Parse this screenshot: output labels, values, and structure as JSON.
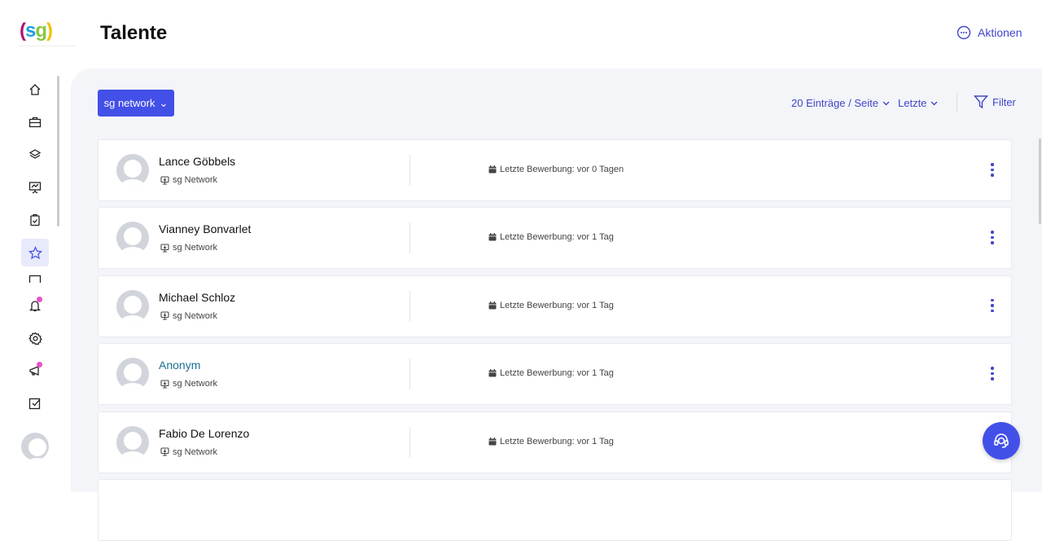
{
  "header": {
    "logo": "(sg)",
    "title": "Talente",
    "actions_label": "Aktionen"
  },
  "sidebar": {
    "items": [
      "home",
      "jobs",
      "layers",
      "presentation",
      "tasks",
      "talents",
      "messages",
      "notifications",
      "settings",
      "announcements",
      "checklist"
    ],
    "active": "talents"
  },
  "toolbar": {
    "network_label": "sg network",
    "per_page": "20 Einträge / Seite",
    "sort": "Letzte",
    "filter": "Filter"
  },
  "talents": [
    {
      "name": "Lance Göbbels",
      "network": "sg Network",
      "last": "Letzte Bewerbung: vor 0 Tagen"
    },
    {
      "name": "Vianney Bonvarlet",
      "network": "sg Network",
      "last": "Letzte Bewerbung: vor 1 Tag"
    },
    {
      "name": "Michael Schloz",
      "network": "sg Network",
      "last": "Letzte Bewerbung: vor 1 Tag"
    },
    {
      "name": "Anonym",
      "network": "sg Network",
      "last": "Letzte Bewerbung: vor 1 Tag"
    },
    {
      "name": "Fabio De Lorenzo",
      "network": "sg Network",
      "last": "Letzte Bewerbung: vor 1 Tag"
    }
  ],
  "colors": {
    "accent": "#4350e8",
    "link": "#3f46c8",
    "anon": "#1b6f95",
    "badge": "#ec4fc9"
  }
}
